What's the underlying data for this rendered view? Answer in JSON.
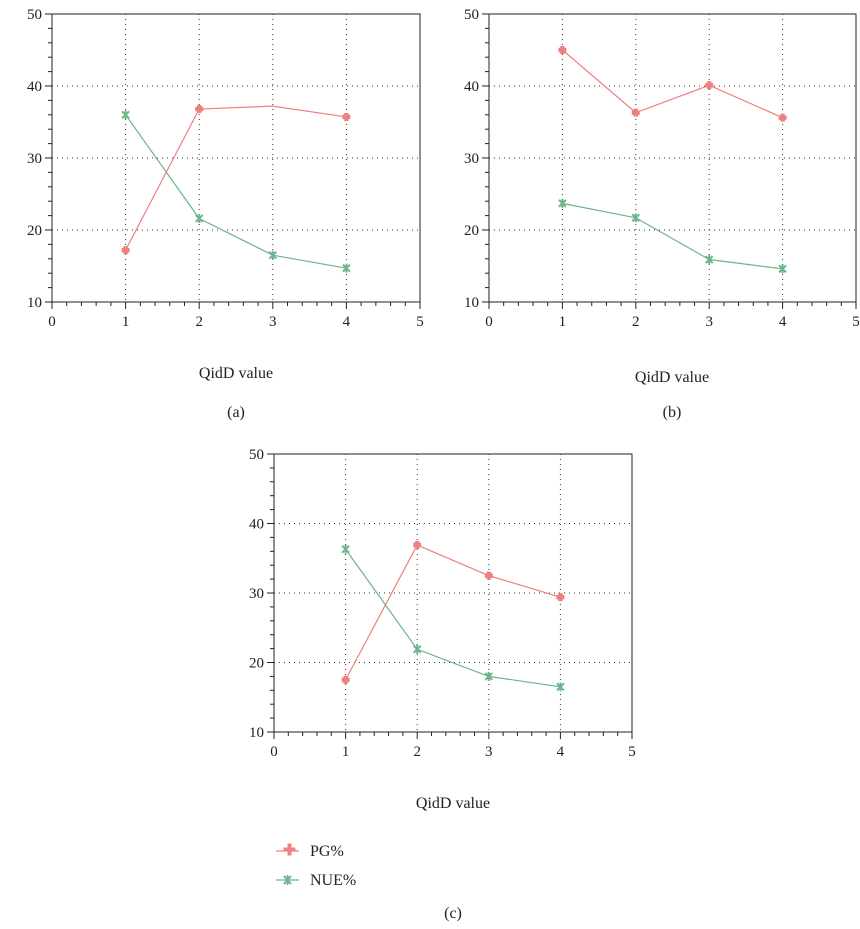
{
  "figure": {
    "legend": {
      "entries": [
        {
          "label": "PG%",
          "color": "#f08080",
          "marker": "plus"
        },
        {
          "label": "NUE%",
          "color": "#6db58a",
          "marker": "star"
        }
      ]
    }
  },
  "chart_data": [
    {
      "type": "line",
      "panel_label": "(a)",
      "xlabel": "QidD value",
      "ylabel": "",
      "xlim": [
        0,
        5
      ],
      "ylim": [
        10,
        50
      ],
      "xticks": [
        "0",
        "1",
        "2",
        "3",
        "4",
        "5"
      ],
      "yticks": [
        "10",
        "20",
        "30",
        "40",
        "50"
      ],
      "grid": true,
      "series": [
        {
          "name": "PG%",
          "color": "#f08080",
          "marker": "plus",
          "points": [
            [
              1,
              17.2
            ],
            [
              2,
              36.8
            ],
            [
              3,
              37.2
            ],
            [
              4,
              35.7
            ]
          ],
          "markers_at": [
            1,
            2,
            4
          ]
        },
        {
          "name": "NUE%",
          "color": "#6db58a",
          "marker": "star",
          "points": [
            [
              1,
              36.0
            ],
            [
              2,
              21.6
            ],
            [
              3,
              16.5
            ],
            [
              4,
              14.7
            ]
          ],
          "markers_at": [
            1,
            2,
            3,
            4
          ]
        }
      ]
    },
    {
      "type": "line",
      "panel_label": "(b)",
      "xlabel": "QidD value",
      "ylabel": "",
      "xlim": [
        0,
        5
      ],
      "ylim": [
        10,
        50
      ],
      "xticks": [
        "0",
        "1",
        "2",
        "3",
        "4",
        "5"
      ],
      "yticks": [
        "10",
        "20",
        "30",
        "40",
        "50"
      ],
      "grid": true,
      "series": [
        {
          "name": "PG%",
          "color": "#f08080",
          "marker": "plus",
          "points": [
            [
              1,
              45.0
            ],
            [
              2,
              36.3
            ],
            [
              3,
              40.1
            ],
            [
              4,
              35.6
            ]
          ],
          "markers_at": [
            1,
            2,
            3,
            4
          ]
        },
        {
          "name": "NUE%",
          "color": "#6db58a",
          "marker": "star",
          "points": [
            [
              1,
              23.7
            ],
            [
              2,
              21.7
            ],
            [
              3,
              15.9
            ],
            [
              4,
              14.6
            ]
          ],
          "markers_at": [
            1,
            2,
            3,
            4
          ]
        }
      ]
    },
    {
      "type": "line",
      "panel_label": "(c)",
      "xlabel": "QidD value",
      "ylabel": "",
      "xlim": [
        0,
        5
      ],
      "ylim": [
        10,
        50
      ],
      "xticks": [
        "0",
        "1",
        "2",
        "3",
        "4",
        "5"
      ],
      "yticks": [
        "10",
        "20",
        "30",
        "40",
        "50"
      ],
      "grid": true,
      "series": [
        {
          "name": "PG%",
          "color": "#f08080",
          "marker": "plus",
          "points": [
            [
              1,
              17.5
            ],
            [
              2,
              36.9
            ],
            [
              3,
              32.5
            ],
            [
              4,
              29.4
            ]
          ],
          "markers_at": [
            1,
            2,
            3,
            4
          ]
        },
        {
          "name": "NUE%",
          "color": "#6db58a",
          "marker": "star",
          "points": [
            [
              1,
              36.3
            ],
            [
              2,
              21.9
            ],
            [
              3,
              18.0
            ],
            [
              4,
              16.5
            ]
          ],
          "markers_at": [
            1,
            2,
            3,
            4
          ]
        }
      ]
    }
  ]
}
